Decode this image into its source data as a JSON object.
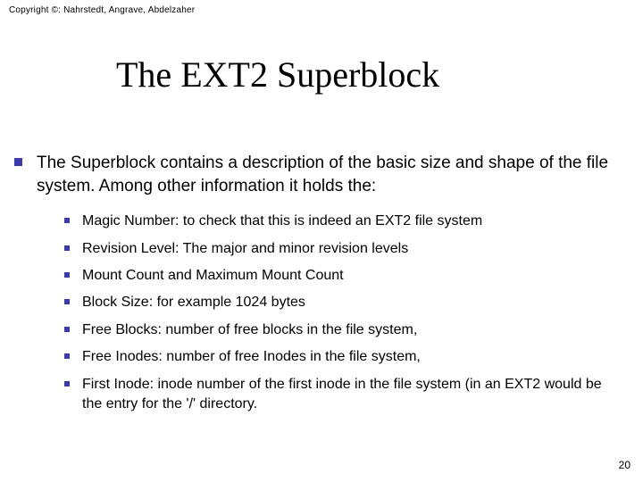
{
  "colors": {
    "bullet": "#3a3aa8",
    "text": "#000000",
    "background": "#ffffff"
  },
  "fonts": {
    "title_family": "Times New Roman",
    "body_family": "Verdana",
    "title_size_pt": 40,
    "l1_size_pt": 19,
    "l2_size_pt": 16,
    "copyright_size_pt": 10,
    "pagenum_size_pt": 12
  },
  "copyright": "Copyright ©: Nahrstedt, Angrave, Abdelzaher",
  "title": "The EXT2 Superblock",
  "intro": "The Superblock contains a description of the basic size and shape of the file system. Among other information it holds the:",
  "items": [
    "Magic Number: to check that this is indeed an EXT2 file system",
    "Revision Level: The major and minor revision levels",
    "Mount Count and Maximum Mount Count",
    "Block Size: for example 1024 bytes",
    "Free Blocks: number of free blocks in the file system,",
    "Free Inodes: number of free Inodes in the file system,",
    "First Inode: inode number of the first inode in the file system (in an EXT2 would be the entry for the '/' directory."
  ],
  "page_number": "20"
}
